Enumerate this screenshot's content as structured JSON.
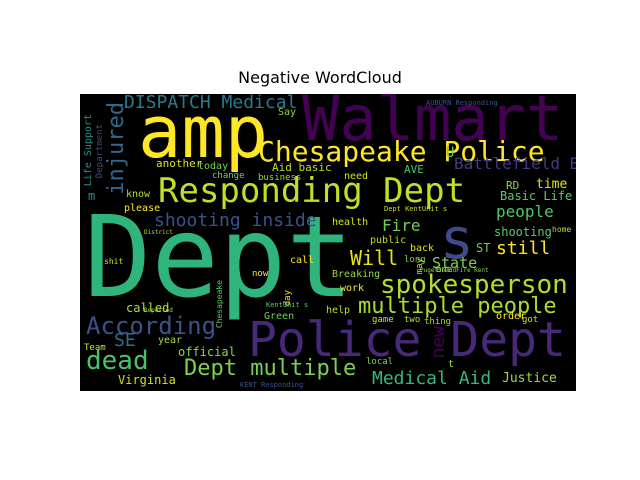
{
  "title": "Negative WordCloud",
  "colors": {
    "background": "#000000",
    "palette": [
      "#440154",
      "#3b528b",
      "#21918c",
      "#5ec962",
      "#fde725"
    ]
  },
  "words": {
    "dept_big": "Dept",
    "walmart": "Walmart",
    "amp": "amp",
    "police_dept": "Police Dept",
    "responding_dept": "Responding Dept",
    "chesapeake_police": "Chesapeake Police",
    "spokesperson": "spokesperson",
    "s": "s",
    "multiple_people": "multiple people",
    "according": "According",
    "dead": "dead",
    "dept_multiple": "Dept multiple",
    "dispatch_medical": "DISPATCH Medical",
    "injured": "injured",
    "shooting_inside": "shooting inside",
    "medical_aid": "Medical Aid",
    "still": "still",
    "will": "Will",
    "fire": "Fire",
    "new": "new",
    "battlefield_blvd": "Battlefield Blvd",
    "people": "people",
    "state": "State",
    "justice": "Justice",
    "virginia": "Virginia",
    "se": "SE",
    "official": "official",
    "called": "called",
    "time": "time",
    "shooting": "shooting",
    "basic_life": "Basic Life",
    "aid_basic": "Aid basic",
    "ave": "AVE",
    "another": "another",
    "today": "today",
    "please": "please",
    "know": "know",
    "breaking": "Breaking",
    "green": "Green",
    "year": "year",
    "team": "Team",
    "work": "work",
    "health": "health",
    "public": "public",
    "back": "back",
    "long": "long",
    "call": "call",
    "help": "help",
    "game": "game",
    "two": "two",
    "thing": "thing",
    "order": "order",
    "got": "got",
    "local": "local",
    "need": "need",
    "change": "change",
    "business": "business",
    "say": "Say",
    "life_support": "Life Support",
    "department": "Department",
    "st": "ST",
    "rd": "RD",
    "may": "may",
    "day": "day",
    "home": "home",
    "chesapeake_small": "Chesapeake",
    "t": "t",
    "one": "one",
    "shit": "shit",
    "now": "now",
    "m": "m",
    "u": "U",
    "kent_responding": "KENT Responding",
    "auburn_responding": "AUBURN Responding",
    "dept_kentunit": "Dept KentUnit s",
    "kentunit": "KentUnit s",
    "reported": "Reported",
    "district": "District",
    "pugetsound": "PugetSoundFire Kent"
  }
}
